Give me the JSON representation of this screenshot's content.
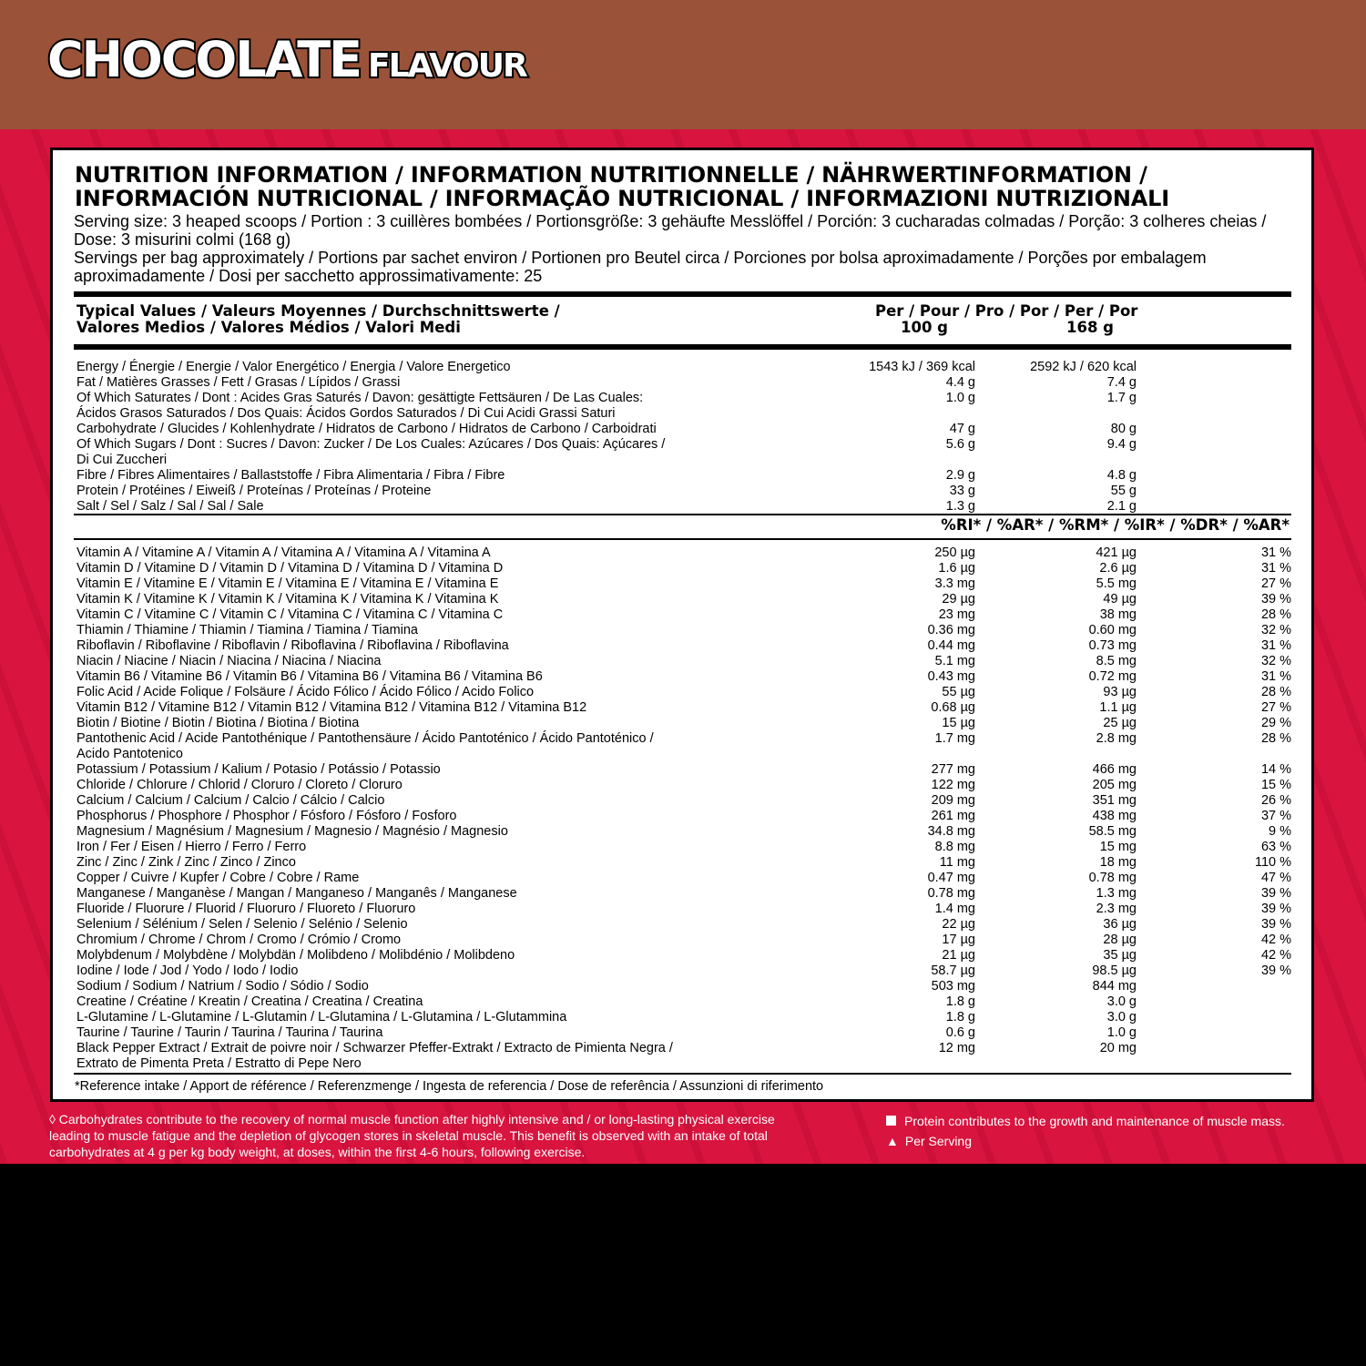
{
  "header": {
    "title_main": "CHOCOLATE",
    "title_sub": "FLAVOUR",
    "bg_color": "#9a5238"
  },
  "accent_color": "#d8143f",
  "nutrition": {
    "heading_line1": "NUTRITION INFORMATION / INFORMATION NUTRITIONNELLE / NÄHRWERTINFORMATION /",
    "heading_line2": "INFORMACIÓN NUTRICIONAL / INFORMAÇÃO NUTRICIONAL / INFORMAZIONI NUTRIZIONALI",
    "serving_size": "Serving size: 3 heaped scoops / Portion : 3 cuillères bombées / Portionsgröße: 3 gehäufte Messlöffel / Porción: 3 cucharadas colmadas / Porção: 3 colheres cheias / Dose: 3 misurini colmi (168 g)",
    "servings_per_bag": "Servings per bag approximately / Portions par sachet environ / Portionen pro Beutel circa / Porciones por bolsa aproximadamente / Porções por embalagem aproximadamente / Dosi per sacchetto approssimativamente: 25",
    "col_header": {
      "typical_line1": "Typical Values / Valeurs Moyennes / Durchschnittswerte /",
      "typical_line2": "Valores Medios / Valores Médios / Valori Medi",
      "per": "Per / Pour / Pro / Por / Per / Por",
      "c100": "100 g",
      "c168": "168 g"
    },
    "macros": [
      [
        "Energy / Énergie / Energie / Valor Energético / Energia / Valore Energetico",
        "1543 kJ / 369 kcal",
        "2592 kJ / 620 kcal"
      ],
      [
        "Fat / Matières Grasses / Fett / Grasas / Lípidos / Grassi",
        "4.4 g",
        "7.4 g"
      ],
      [
        "Of Which Saturates / Dont : Acides Gras Saturés / Davon: gesättigte Fettsäuren / De Las Cuales:\nÁcidos Grasos Saturados / Dos Quais: Ácidos Gordos Saturados / Di Cui Acidi Grassi Saturi",
        "1.0 g",
        "1.7 g"
      ],
      [
        "Carbohydrate / Glucides / Kohlenhydrate / Hidratos de Carbono / Hidratos de Carbono / Carboidrati",
        "47 g",
        "80 g"
      ],
      [
        "Of Which Sugars / Dont : Sucres / Davon: Zucker / De Los Cuales: Azúcares / Dos Quais: Açúcares /\nDi Cui Zuccheri",
        "5.6 g",
        "9.4 g"
      ],
      [
        "Fibre / Fibres Alimentaires / Ballaststoffe / Fibra Alimentaria / Fibra / Fibre",
        "2.9 g",
        "4.8 g"
      ],
      [
        "Protein / Protéines / Eiweiß / Proteínas / Proteínas / Proteine",
        "33 g",
        "55 g"
      ],
      [
        "Salt / Sel / Salz / Sal / Sal / Sale",
        "1.3 g",
        "2.1 g"
      ]
    ],
    "ri_header": "%RI* / %AR* / %RM* / %IR* / %DR* / %AR*",
    "micros": [
      [
        "Vitamin A / Vitamine A / Vitamin A / Vitamina A / Vitamina A / Vitamina A",
        "250 µg",
        "421 µg",
        "31 %"
      ],
      [
        "Vitamin D / Vitamine D / Vitamin D / Vitamina D / Vitamina D / Vitamina D",
        "1.6 µg",
        "2.6 µg",
        "31 %"
      ],
      [
        "Vitamin E / Vitamine E / Vitamin E / Vitamina E / Vitamina E / Vitamina E",
        "3.3 mg",
        "5.5 mg",
        "27 %"
      ],
      [
        "Vitamin K / Vitamine K / Vitamin K / Vitamina K / Vitamina K / Vitamina K",
        "29 µg",
        "49 µg",
        "39 %"
      ],
      [
        "Vitamin C / Vitamine C / Vitamin C / Vitamina C / Vitamina C / Vitamina C",
        "23 mg",
        "38 mg",
        "28 %"
      ],
      [
        "Thiamin / Thiamine / Thiamin / Tiamina / Tiamina / Tiamina",
        "0.36 mg",
        "0.60 mg",
        "32 %"
      ],
      [
        "Riboflavin / Riboflavine / Riboflavin / Riboflavina / Riboflavina / Riboflavina",
        "0.44 mg",
        "0.73 mg",
        "31 %"
      ],
      [
        "Niacin / Niacine / Niacin / Niacina / Niacina / Niacina",
        "5.1 mg",
        "8.5 mg",
        "32 %"
      ],
      [
        "Vitamin B6 / Vitamine B6 / Vitamin B6 / Vitamina B6 / Vitamina B6 / Vitamina B6",
        "0.43 mg",
        "0.72 mg",
        "31 %"
      ],
      [
        "Folic Acid / Acide Folique / Folsäure / Ácido Fólico / Ácido Fólico / Acido Folico",
        "55 µg",
        "93 µg",
        "28 %"
      ],
      [
        "Vitamin B12 / Vitamine B12 / Vitamin B12 / Vitamina B12 / Vitamina B12 / Vitamina B12",
        "0.68 µg",
        "1.1 µg",
        "27 %"
      ],
      [
        "Biotin / Biotine / Biotin / Biotina / Biotina / Biotina",
        "15 µg",
        "25 µg",
        "29 %"
      ],
      [
        "Pantothenic Acid / Acide Pantothénique / Pantothensäure / Ácido Pantoténico / Ácido Pantoténico /\nAcido Pantotenico",
        "1.7 mg",
        "2.8 mg",
        "28 %"
      ],
      [
        "Potassium / Potassium / Kalium / Potasio / Potássio / Potassio",
        "277 mg",
        "466 mg",
        "14 %"
      ],
      [
        "Chloride / Chlorure / Chlorid / Cloruro / Cloreto / Cloruro",
        "122 mg",
        "205 mg",
        "15 %"
      ],
      [
        "Calcium / Calcium / Calcium / Calcio / Cálcio / Calcio",
        "209 mg",
        "351 mg",
        "26 %"
      ],
      [
        "Phosphorus / Phosphore / Phosphor / Fósforo / Fósforo / Fosforo",
        "261 mg",
        "438 mg",
        "37 %"
      ],
      [
        "Magnesium / Magnésium / Magnesium / Magnesio / Magnésio / Magnesio",
        "34.8 mg",
        "58.5 mg",
        "9 %"
      ],
      [
        "Iron / Fer / Eisen / Hierro / Ferro / Ferro",
        "8.8 mg",
        "15 mg",
        "63 %"
      ],
      [
        "Zinc / Zinc / Zink / Zinc / Zinco / Zinco",
        "11 mg",
        "18 mg",
        "110 %"
      ],
      [
        "Copper / Cuivre / Kupfer / Cobre / Cobre / Rame",
        "0.47 mg",
        "0.78 mg",
        "47 %"
      ],
      [
        "Manganese / Manganèse / Mangan / Manganeso / Manganês / Manganese",
        "0.78 mg",
        "1.3 mg",
        "39 %"
      ],
      [
        "Fluoride / Fluorure / Fluorid / Fluoruro / Fluoreto / Fluoruro",
        "1.4 mg",
        "2.3 mg",
        "39 %"
      ],
      [
        "Selenium / Sélénium / Selen / Selenio / Selénio / Selenio",
        "22 µg",
        "36 µg",
        "39 %"
      ],
      [
        "Chromium / Chrome / Chrom / Cromo / Crómio / Cromo",
        "17 µg",
        "28 µg",
        "42 %"
      ],
      [
        "Molybdenum / Molybdène / Molybdän / Molibdeno / Molibdénio / Molibdeno",
        "21 µg",
        "35 µg",
        "42 %"
      ],
      [
        "Iodine / Iode / Jod / Yodo / Iodo / Iodio",
        "58.7 µg",
        "98.5 µg",
        "39 %"
      ],
      [
        "Sodium / Sodium / Natrium / Sodio / Sódio / Sodio",
        "503 mg",
        "844 mg",
        ""
      ],
      [
        "Creatine / Créatine / Kreatin / Creatina / Creatina / Creatina",
        "1.8 g",
        "3.0 g",
        ""
      ],
      [
        "L-Glutamine / L-Glutamine / L-Glutamin / L-Glutamina / L-Glutamina / L-Glutammina",
        "1.8 g",
        "3.0 g",
        ""
      ],
      [
        "Taurine / Taurine / Taurin / Taurina / Taurina / Taurina",
        "0.6 g",
        "1.0 g",
        ""
      ],
      [
        "Black Pepper Extract / Extrait de poivre noir / Schwarzer Pfeffer-Extrakt / Extracto de Pimienta Negra /\nExtrato de Pimenta Preta / Estratto di Pepe Nero",
        "12 mg",
        "20 mg",
        ""
      ]
    ],
    "reference_note": "*Reference intake / Apport de référence / Referenzmenge / Ingesta de referencia / Dose de referência / Assunzioni di riferimento"
  },
  "footnotes": {
    "carb_claim": "◊  Carbohydrates contribute to the recovery of normal muscle function after highly intensive and / or long-lasting physical exercise leading to muscle fatigue and the depletion of glycogen stores in skeletal muscle. This benefit is observed with an intake of total carbohydrates at 4 g per kg body weight, at doses, within the first 4-6 hours, following exercise.",
    "protein_claim": "Protein contributes to the growth and maintenance of muscle mass.",
    "per_serving": "Per Serving",
    "square_icon": "square-icon",
    "triangle_icon": "triangle-icon"
  }
}
